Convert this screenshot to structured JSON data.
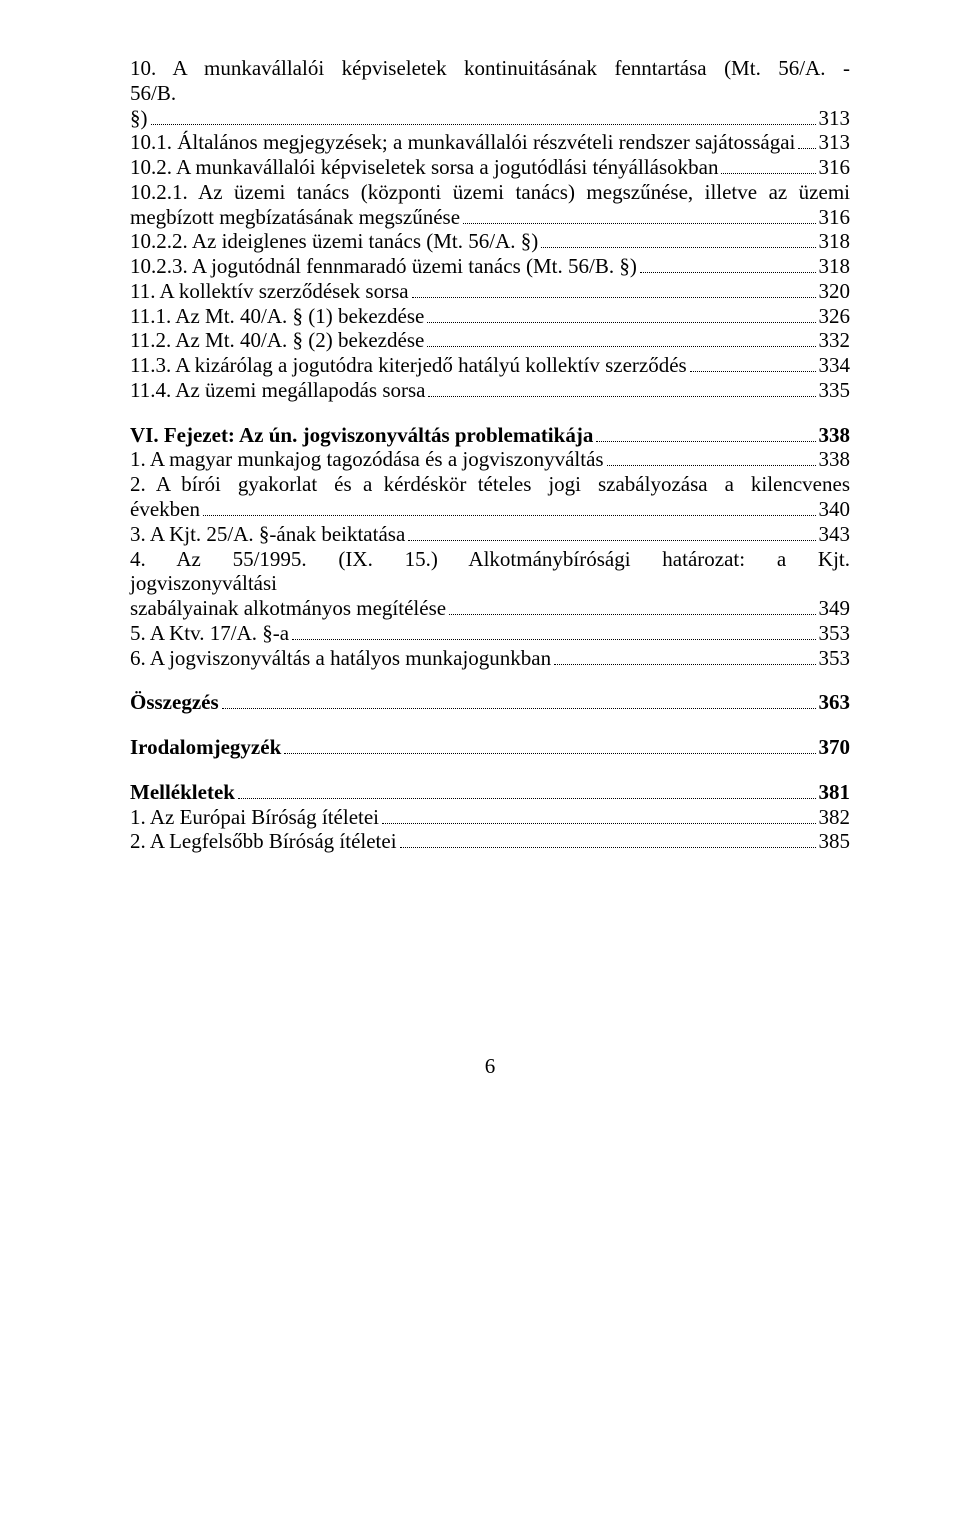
{
  "entries": [
    {
      "type": "dangle",
      "lines": [
        "10.  A  munkavállalói  képviseletek  kontinuitásának  fenntartása  (Mt.  56/A.  -  56/B.",
        "§)"
      ],
      "page": "313"
    },
    {
      "type": "line",
      "label": "10.1. Általános megjegyzések; a munkavállalói részvételi rendszer sajátosságai",
      "page": "313"
    },
    {
      "type": "line",
      "label": "10.2. A munkavállalói képviseletek sorsa a jogutódlási tényállásokban",
      "page": "316"
    },
    {
      "type": "dangle",
      "lines": [
        "10.2.1.  Az  üzemi  tanács  (központi  üzemi  tanács)  megszűnése,  illetve  az  üzemi",
        "megbízott megbízatásának megszűnése"
      ],
      "page": "316"
    },
    {
      "type": "line",
      "label": "10.2.2. Az ideiglenes üzemi tanács (Mt. 56/A. §)",
      "page": "318"
    },
    {
      "type": "line",
      "label": "10.2.3. A jogutódnál fennmaradó üzemi tanács (Mt. 56/B. §)",
      "page": "318"
    },
    {
      "type": "line",
      "label": "11. A kollektív szerződések sorsa",
      "page": "320"
    },
    {
      "type": "line",
      "label": "11.1. Az Mt. 40/A. § (1) bekezdése",
      "page": "326"
    },
    {
      "type": "line",
      "label": "11.2. Az Mt. 40/A. § (2) bekezdése",
      "page": "332"
    },
    {
      "type": "line",
      "label": "11.3. A kizárólag a jogutódra kiterjedő hatályú kollektív szerződés",
      "page": "334"
    },
    {
      "type": "line",
      "label": "11.4. Az üzemi megállapodás sorsa",
      "page": "335"
    },
    {
      "type": "gap"
    },
    {
      "type": "line",
      "label": "VI. Fejezet: Az ún. jogviszonyváltás problematikája",
      "page": "338",
      "bold": true
    },
    {
      "type": "line",
      "label": "1. A magyar munkajog tagozódása és a jogviszonyváltás",
      "page": "338"
    },
    {
      "type": "dangle",
      "lines": [
        "2.  A  bírói   gyakorlat   és  a  kérdéskör  tételes   jogi   szabályozása   a   kilencvenes",
        "években"
      ],
      "page": "340"
    },
    {
      "type": "line",
      "label": "3. A Kjt. 25/A. §-ának beiktatása",
      "page": "343"
    },
    {
      "type": "dangle",
      "lines": [
        "4.   Az   55/1995.   (IX.   15.)   Alkotmánybírósági   határozat:   a   Kjt.   jogviszonyváltási",
        "szabályainak alkotmányos megítélése"
      ],
      "page": "349"
    },
    {
      "type": "line",
      "label": "5. A Ktv. 17/A. §-a",
      "page": "353"
    },
    {
      "type": "line",
      "label": "6. A jogviszonyváltás a hatályos munkajogunkban",
      "page": "353"
    },
    {
      "type": "gap"
    },
    {
      "type": "line",
      "label": "Összegzés",
      "page": "363",
      "bold": true
    },
    {
      "type": "gap"
    },
    {
      "type": "line",
      "label": "Irodalomjegyzék",
      "page": "370",
      "bold": true
    },
    {
      "type": "gap"
    },
    {
      "type": "line",
      "label": "Mellékletek",
      "page": "381",
      "bold": true
    },
    {
      "type": "line",
      "label": "1. Az Európai Bíróság ítéletei",
      "page": "382"
    },
    {
      "type": "line",
      "label": "2. A Legfelsőbb Bíróság ítéletei",
      "page": "385"
    }
  ],
  "pageNumber": "6",
  "style": {
    "font_family": "Times New Roman",
    "font_size_pt": 16,
    "text_color": "#000000",
    "background_color": "#ffffff",
    "leader_style": "dotted"
  }
}
